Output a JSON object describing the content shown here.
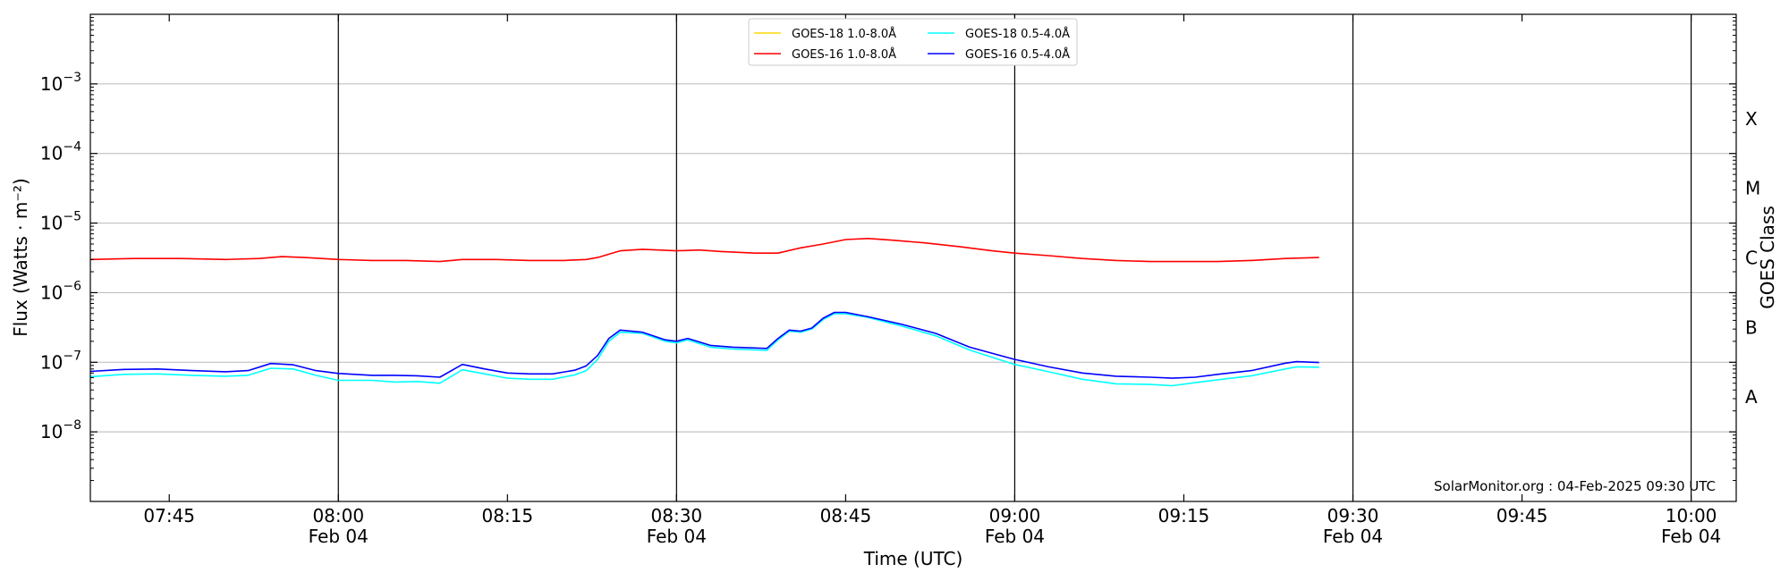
{
  "chart_data": {
    "type": "line",
    "title": "",
    "xlabel": "Time (UTC)",
    "ylabel": "Flux (Watts · m⁻²)",
    "y2label": "GOES Class",
    "yscale": "log",
    "ylim": [
      1e-09,
      0.01
    ],
    "xlim": [
      "2025-02-04T07:38",
      "2025-02-04T10:04"
    ],
    "grid": "horizontal",
    "legend_position": "top-center",
    "watermark": "SolarMonitor.org : 04-Feb-2025 09:30 UTC",
    "x_ticks": [
      {
        "time": "07:45",
        "line1": "07:45",
        "line2": ""
      },
      {
        "time": "08:00",
        "line1": "08:00",
        "line2": "Feb 04"
      },
      {
        "time": "08:15",
        "line1": "08:15",
        "line2": ""
      },
      {
        "time": "08:30",
        "line1": "08:30",
        "line2": "Feb 04"
      },
      {
        "time": "08:45",
        "line1": "08:45",
        "line2": ""
      },
      {
        "time": "09:00",
        "line1": "09:00",
        "line2": "Feb 04"
      },
      {
        "time": "09:15",
        "line1": "09:15",
        "line2": ""
      },
      {
        "time": "09:30",
        "line1": "09:30",
        "line2": "Feb 04"
      },
      {
        "time": "09:45",
        "line1": "09:45",
        "line2": ""
      },
      {
        "time": "10:00",
        "line1": "10:00",
        "line2": "Feb 04"
      }
    ],
    "vertical_lines": [
      "08:00",
      "08:30",
      "09:00",
      "09:30",
      "10:00"
    ],
    "y_ticks": [
      {
        "value": 1e-08,
        "base": "10",
        "exp": "−8"
      },
      {
        "value": 1e-07,
        "base": "10",
        "exp": "−7"
      },
      {
        "value": 1e-06,
        "base": "10",
        "exp": "−6"
      },
      {
        "value": 1e-05,
        "base": "10",
        "exp": "−5"
      },
      {
        "value": 0.0001,
        "base": "10",
        "exp": "−4"
      },
      {
        "value": 0.001,
        "base": "10",
        "exp": "−3"
      }
    ],
    "goes_classes": [
      {
        "label": "A",
        "value": 3.162e-08
      },
      {
        "label": "B",
        "value": 3.162e-07
      },
      {
        "label": "C",
        "value": 3.162e-06
      },
      {
        "label": "M",
        "value": 3.162e-05
      },
      {
        "label": "X",
        "value": 0.0003162
      }
    ],
    "series": [
      {
        "name": "GOES-18 1.0-8.0Å",
        "color": "#FFD700",
        "x": [],
        "y": []
      },
      {
        "name": "GOES-16 1.0-8.0Å",
        "color": "#FF0000",
        "x": [
          "07:38",
          "07:42",
          "07:46",
          "07:50",
          "07:53",
          "07:55",
          "07:57",
          "08:00",
          "08:03",
          "08:06",
          "08:09",
          "08:11",
          "08:14",
          "08:17",
          "08:20",
          "08:22",
          "08:23",
          "08:25",
          "08:27",
          "08:30",
          "08:32",
          "08:34",
          "08:37",
          "08:39",
          "08:41",
          "08:43",
          "08:45",
          "08:47",
          "08:49",
          "08:52",
          "08:55",
          "08:58",
          "09:00",
          "09:03",
          "09:06",
          "09:09",
          "09:12",
          "09:15",
          "09:18",
          "09:21",
          "09:24",
          "09:27"
        ],
        "y": [
          3e-06,
          3.1e-06,
          3.1e-06,
          3e-06,
          3.1e-06,
          3.3e-06,
          3.2e-06,
          3e-06,
          2.9e-06,
          2.9e-06,
          2.8e-06,
          3e-06,
          3e-06,
          2.9e-06,
          2.9e-06,
          3e-06,
          3.2e-06,
          4e-06,
          4.2e-06,
          4e-06,
          4.1e-06,
          3.9e-06,
          3.7e-06,
          3.7e-06,
          4.4e-06,
          5e-06,
          5.8e-06,
          6e-06,
          5.7e-06,
          5.2e-06,
          4.6e-06,
          4e-06,
          3.7e-06,
          3.4e-06,
          3.1e-06,
          2.9e-06,
          2.8e-06,
          2.8e-06,
          2.8e-06,
          2.9e-06,
          3.1e-06,
          3.2e-06
        ]
      },
      {
        "name": "GOES-18 0.5-4.0Å",
        "color": "#00FFFF",
        "x": [
          "07:38",
          "07:41",
          "07:44",
          "07:47",
          "07:50",
          "07:52",
          "07:54",
          "07:56",
          "07:58",
          "08:00",
          "08:03",
          "08:05",
          "08:07",
          "08:09",
          "08:11",
          "08:13",
          "08:15",
          "08:17",
          "08:19",
          "08:21",
          "08:22",
          "08:23",
          "08:24",
          "08:25",
          "08:27",
          "08:29",
          "08:30",
          "08:31",
          "08:33",
          "08:35",
          "08:38",
          "08:39",
          "08:40",
          "08:41",
          "08:42",
          "08:43",
          "08:44",
          "08:45",
          "08:47",
          "08:50",
          "08:53",
          "08:56",
          "09:00",
          "09:03",
          "09:06",
          "09:09",
          "09:12",
          "09:14",
          "09:16",
          "09:18",
          "09:21",
          "09:24",
          "09:25",
          "09:27"
        ],
        "y": [
          6.2e-08,
          6.7e-08,
          6.8e-08,
          6.5e-08,
          6.3e-08,
          6.5e-08,
          8.2e-08,
          8e-08,
          6.5e-08,
          5.5e-08,
          5.5e-08,
          5.2e-08,
          5.3e-08,
          5e-08,
          7.8e-08,
          6.8e-08,
          5.9e-08,
          5.7e-08,
          5.7e-08,
          6.6e-08,
          7.6e-08,
          1.1e-07,
          2e-07,
          2.7e-07,
          2.6e-07,
          2e-07,
          1.9e-07,
          2.1e-07,
          1.65e-07,
          1.55e-07,
          1.48e-07,
          2.1e-07,
          2.8e-07,
          2.7e-07,
          3e-07,
          4.1e-07,
          5e-07,
          5e-07,
          4.4e-07,
          3.3e-07,
          2.4e-07,
          1.5e-07,
          9.3e-08,
          7.3e-08,
          5.7e-08,
          4.9e-08,
          4.8e-08,
          4.6e-08,
          5.1e-08,
          5.6e-08,
          6.4e-08,
          8e-08,
          8.6e-08,
          8.5e-08
        ]
      },
      {
        "name": "GOES-16 0.5-4.0Å",
        "color": "#0000FF",
        "x": [
          "07:38",
          "07:41",
          "07:44",
          "07:47",
          "07:50",
          "07:52",
          "07:54",
          "07:56",
          "07:58",
          "08:00",
          "08:03",
          "08:05",
          "08:07",
          "08:09",
          "08:11",
          "08:13",
          "08:15",
          "08:17",
          "08:19",
          "08:21",
          "08:22",
          "08:23",
          "08:24",
          "08:25",
          "08:27",
          "08:29",
          "08:30",
          "08:31",
          "08:33",
          "08:35",
          "08:38",
          "08:39",
          "08:40",
          "08:41",
          "08:42",
          "08:43",
          "08:44",
          "08:45",
          "08:47",
          "08:50",
          "08:53",
          "08:56",
          "09:00",
          "09:03",
          "09:06",
          "09:09",
          "09:12",
          "09:14",
          "09:16",
          "09:18",
          "09:21",
          "09:24",
          "09:25",
          "09:27"
        ],
        "y": [
          7.4e-08,
          7.9e-08,
          8e-08,
          7.6e-08,
          7.3e-08,
          7.6e-08,
          9.6e-08,
          9.2e-08,
          7.6e-08,
          6.9e-08,
          6.5e-08,
          6.5e-08,
          6.4e-08,
          6.1e-08,
          9.3e-08,
          8e-08,
          7e-08,
          6.8e-08,
          6.8e-08,
          7.7e-08,
          8.9e-08,
          1.25e-07,
          2.2e-07,
          2.9e-07,
          2.7e-07,
          2.1e-07,
          2e-07,
          2.2e-07,
          1.75e-07,
          1.65e-07,
          1.58e-07,
          2.2e-07,
          2.9e-07,
          2.8e-07,
          3.1e-07,
          4.3e-07,
          5.2e-07,
          5.2e-07,
          4.5e-07,
          3.5e-07,
          2.6e-07,
          1.65e-07,
          1.1e-07,
          8.6e-08,
          7e-08,
          6.3e-08,
          6.1e-08,
          5.9e-08,
          6.1e-08,
          6.7e-08,
          7.6e-08,
          9.7e-08,
          1.02e-07,
          9.9e-08
        ]
      }
    ]
  }
}
